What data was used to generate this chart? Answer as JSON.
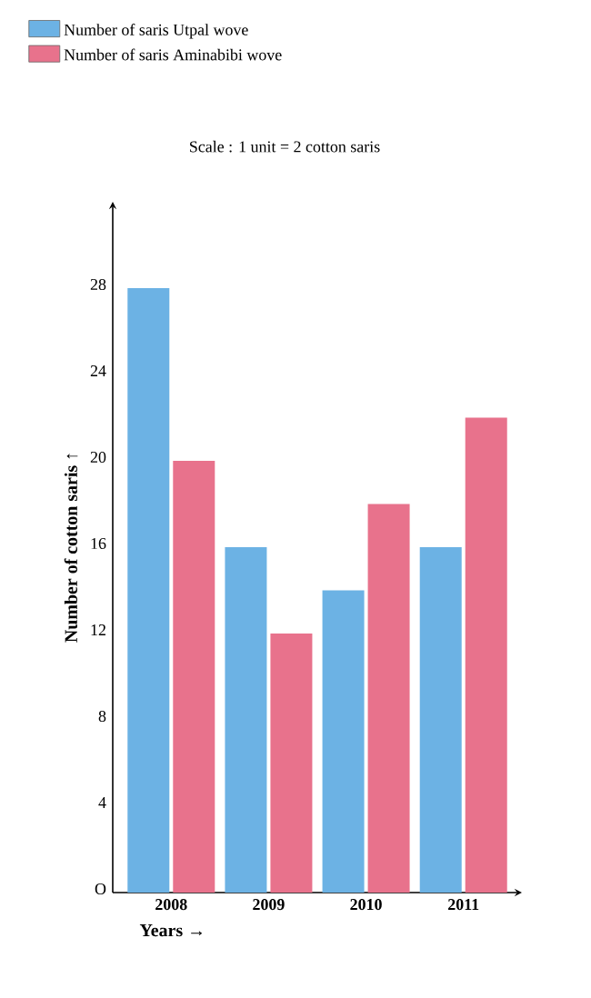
{
  "chart_data": {
    "type": "bar",
    "categories": [
      "2008",
      "2009",
      "2010",
      "2011"
    ],
    "series": [
      {
        "name": "Number of saris Utpal wove",
        "color": "#6cb2e4",
        "values": [
          28,
          16,
          14,
          16
        ]
      },
      {
        "name": "Number of saris Aminabibi wove",
        "color": "#e8728c",
        "values": [
          20,
          12,
          18,
          22
        ]
      }
    ],
    "xlabel": "Years →",
    "ylabel": "Number of cotton saris ↑",
    "annotations": [
      "Scale : 1 unit = 2 cotton saris"
    ],
    "ylim": [
      0,
      32
    ],
    "yticks": [
      {
        "value": 0,
        "label": "O"
      },
      4,
      8,
      12,
      16,
      20,
      24,
      28
    ],
    "grid": false,
    "legend": "top left"
  }
}
